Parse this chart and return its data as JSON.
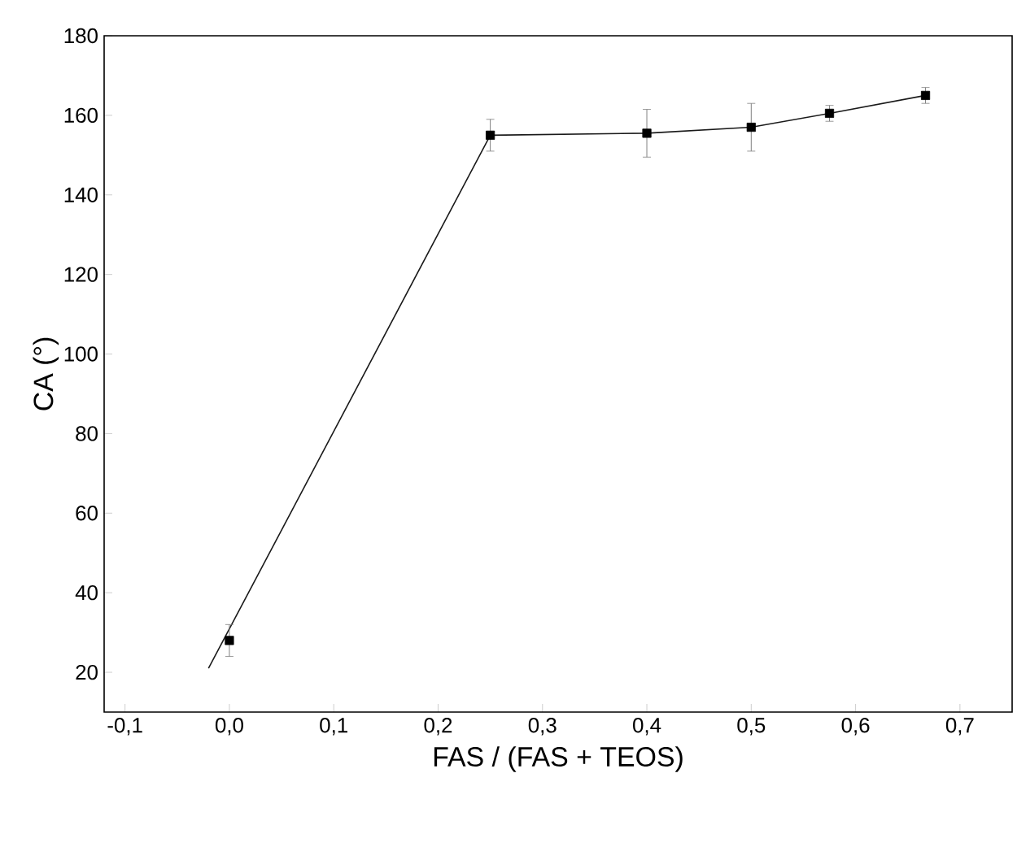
{
  "chart_data": {
    "type": "scatter",
    "xlabel": "FAS / (FAS + TEOS)",
    "ylabel": "CA (°)",
    "xlim": [
      -0.12,
      0.75
    ],
    "ylim": [
      10,
      180
    ],
    "xticks": [
      {
        "value": -0.1,
        "label": "-0,1"
      },
      {
        "value": 0,
        "label": "0,0"
      },
      {
        "value": 0.1,
        "label": "0,1"
      },
      {
        "value": 0.2,
        "label": "0,2"
      },
      {
        "value": 0.3,
        "label": "0,3"
      },
      {
        "value": 0.4,
        "label": "0,4"
      },
      {
        "value": 0.5,
        "label": "0,5"
      },
      {
        "value": 0.6,
        "label": "0,6"
      },
      {
        "value": 0.7,
        "label": "0,7"
      }
    ],
    "yticks": [
      20,
      40,
      60,
      80,
      100,
      120,
      140,
      160,
      180
    ],
    "series": [
      {
        "type": "line",
        "color": "#1a1a1a",
        "marker": "none",
        "x": [
          -0.02,
          0.25,
          0.4,
          0.5,
          0.575,
          0.667
        ],
        "values": [
          21,
          155,
          155.5,
          157,
          160.5,
          165
        ]
      },
      {
        "color": "#000000",
        "marker": "square",
        "x": [
          0,
          0.25,
          0.4,
          0.5,
          0.575,
          0.667
        ],
        "values": [
          28,
          155,
          155.5,
          157,
          160.5,
          165
        ],
        "errors": [
          4,
          4,
          6,
          6,
          2,
          2
        ]
      }
    ]
  }
}
